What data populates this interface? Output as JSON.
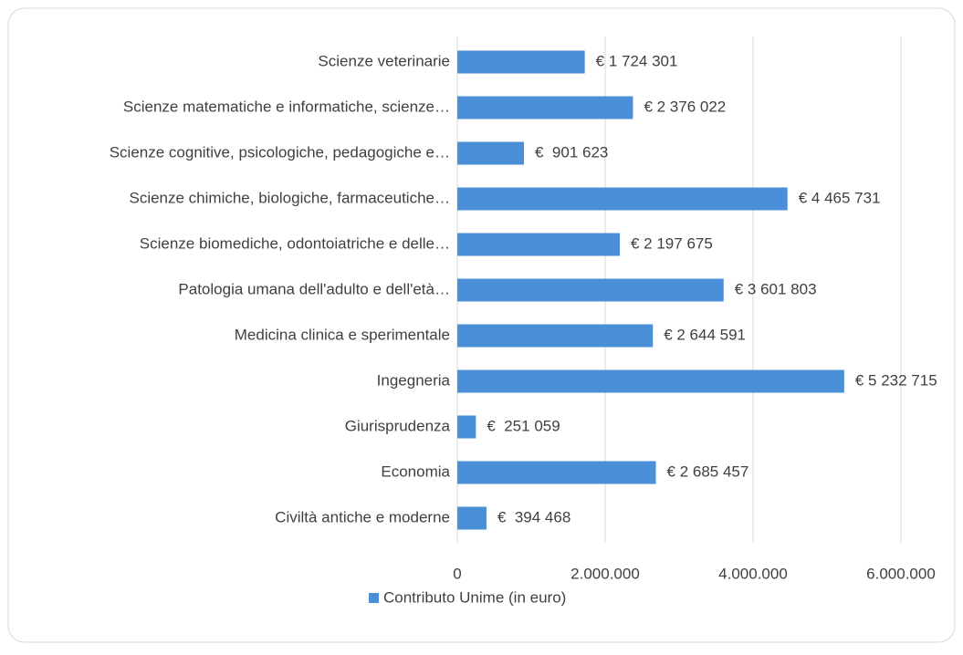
{
  "chart_data": {
    "type": "bar",
    "orientation": "horizontal",
    "categories": [
      "Scienze veterinarie",
      "Scienze matematiche e informatiche, scienze…",
      "Scienze cognitive, psicologiche, pedagogiche e…",
      "Scienze chimiche, biologiche, farmaceutiche…",
      "Scienze biomediche, odontoiatriche e delle…",
      "Patologia umana dell'adulto e dell'età…",
      "Medicina clinica e sperimentale",
      "Ingegneria",
      "Giurisprudenza",
      "Economia",
      "Civiltà antiche e moderne"
    ],
    "series": [
      {
        "name": "Contributo Unime (in euro)",
        "color": "#4a8fd8",
        "values": [
          1724301,
          2376022,
          901623,
          4465731,
          2197675,
          3601803,
          2644591,
          5232715,
          251059,
          2685457,
          394468
        ],
        "value_labels": [
          "€ 1 724 301",
          "€ 2 376 022",
          "€  901 623",
          "€ 4 465 731",
          "€ 2 197 675",
          "€ 3 601 803",
          "€ 2 644 591",
          "€ 5 232 715",
          "€  251 059",
          "€ 2 685 457",
          "€  394 468"
        ]
      }
    ],
    "xlim": [
      0,
      6000000
    ],
    "xticks": [
      0,
      {
        "value": 2000000,
        "label": "2.000.000"
      },
      {
        "value": 4000000,
        "label": "4.000.000"
      },
      {
        "value": 6000000,
        "label": "6.000.000"
      }
    ],
    "grid": true,
    "legend": "bottom"
  }
}
